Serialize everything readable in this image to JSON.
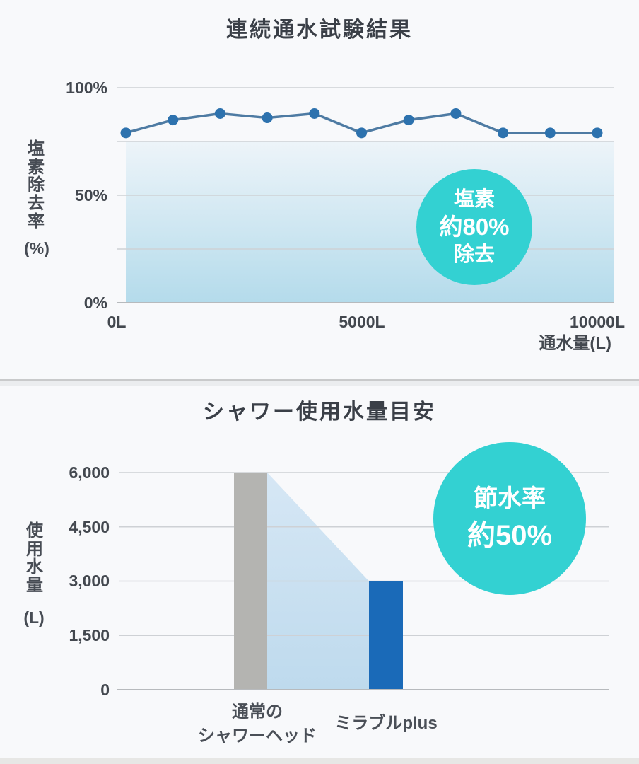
{
  "colors": {
    "background": "#f8f9fb",
    "grid": "#ced1d5",
    "axis": "#b7babd",
    "accent_teal": "#33d1d2"
  },
  "chart_data": [
    {
      "type": "line",
      "title": "連続通水試験結果",
      "ylabel": "塩素除去率",
      "ylabel_unit": "(%)",
      "xlabel": "通水量(L)",
      "y_ticks": [
        "100%",
        "50%",
        "0%"
      ],
      "x_ticks": [
        "0L",
        "5000L",
        "10000L"
      ],
      "ylim": [
        0,
        100
      ],
      "xlim_liters": [
        0,
        10000
      ],
      "grid": true,
      "gridline_interval_pct": 25,
      "x": [
        0,
        1000,
        2000,
        3000,
        4000,
        5000,
        6000,
        7000,
        8000,
        9000,
        10000
      ],
      "values": [
        79,
        85,
        88,
        86,
        88,
        79,
        85,
        88,
        79,
        79,
        79
      ],
      "line_color": "#4e7ba3",
      "point_color": "#2d72ae",
      "area_top_color": "#edf4f9",
      "area_bottom_color": "#b4dbeb",
      "badge": {
        "lines": [
          "塩素",
          "約80%",
          "除去"
        ],
        "color": "#33d1d2",
        "text_color": "#ffffff"
      }
    },
    {
      "type": "bar",
      "title": "シャワー使用水量目安",
      "ylabel": "使用水量",
      "ylabel_unit": "(L)",
      "categories": [
        "通常のシャワーヘッド",
        "ミラブルplus"
      ],
      "category_lines": [
        [
          "通常の",
          "シャワーヘッド"
        ],
        [
          "ミラブルplus"
        ]
      ],
      "values": [
        6000,
        3000
      ],
      "y_ticks": [
        "6,000",
        "4,500",
        "3,000",
        "1,500",
        "0"
      ],
      "ylim": [
        0,
        6000
      ],
      "grid": true,
      "bar_colors": [
        "#b4b4b1",
        "#1a6ab8"
      ],
      "connector_top_color": "#d6e7f5",
      "connector_bottom_color": "#bedaed",
      "badge": {
        "lines": [
          "節水率",
          "約50%"
        ],
        "color": "#33d1d2",
        "text_color": "#ffffff"
      }
    }
  ]
}
